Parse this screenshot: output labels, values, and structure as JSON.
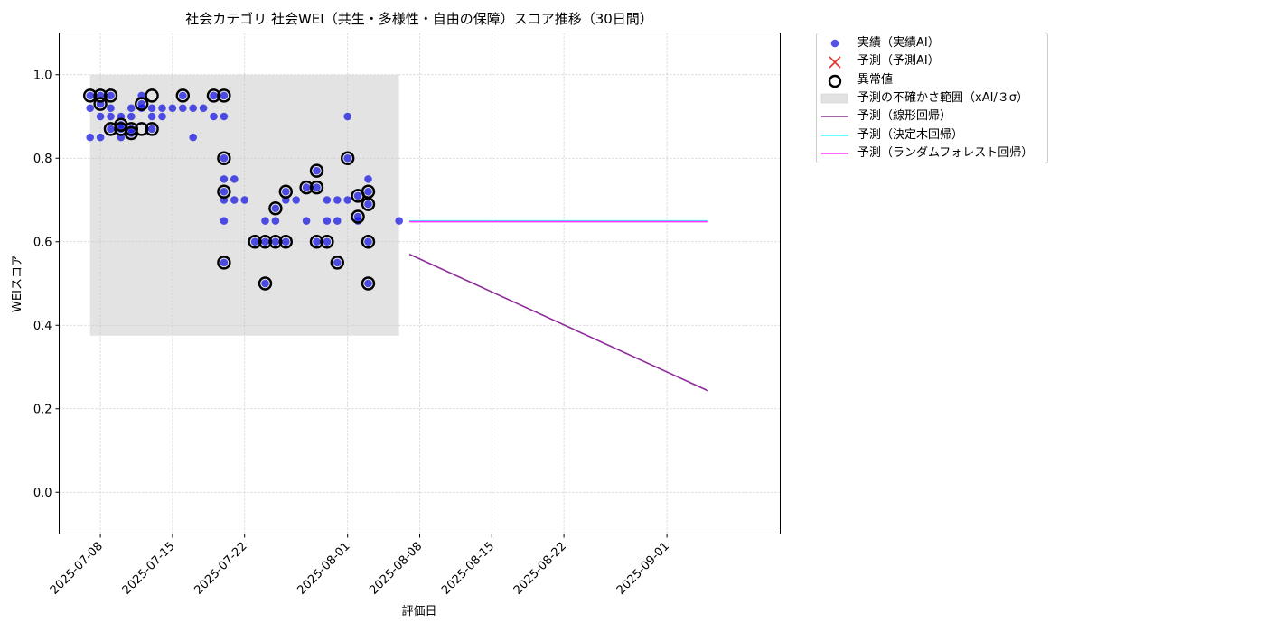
{
  "chart_data": {
    "type": "scatter",
    "title": "社会カテゴリ 社会WEI（共生・多様性・自由の保障）スコア推移（30日間）",
    "xlabel": "評価日",
    "ylabel": "WEIスコア",
    "xlim": [
      "2025-07-04",
      "2025-09-12"
    ],
    "ylim": [
      -0.1,
      1.1
    ],
    "x_tick_labels": [
      "2025-07-08",
      "2025-07-15",
      "2025-07-22",
      "2025-08-01",
      "2025-08-08",
      "2025-08-15",
      "2025-08-22",
      "2025-09-01"
    ],
    "y_tick_labels": [
      "0.0",
      "0.2",
      "0.4",
      "0.6",
      "0.8",
      "1.0"
    ],
    "grid": true,
    "legend_position": "outside-top-right",
    "colors": {
      "actual": "#1010e0",
      "forecast_x": "#e03030",
      "uncertainty": "#e2e2e2",
      "linear": "#8e2c9a",
      "tree": "#33ffff",
      "forest": "#ff33ff"
    },
    "uncertainty_band": {
      "x_start": "2025-07-07",
      "x_end": "2025-08-06",
      "y_low": 0.375,
      "y_high": 1.0
    },
    "series": [
      {
        "name": "実績（実績AI）",
        "kind": "points",
        "points": [
          [
            "2025-07-07",
            0.95
          ],
          [
            "2025-07-07",
            0.92
          ],
          [
            "2025-07-07",
            0.85
          ],
          [
            "2025-07-08",
            0.9
          ],
          [
            "2025-07-08",
            0.85
          ],
          [
            "2025-07-08",
            0.95
          ],
          [
            "2025-07-08",
            0.93
          ],
          [
            "2025-07-09",
            0.87
          ],
          [
            "2025-07-09",
            0.9
          ],
          [
            "2025-07-09",
            0.95
          ],
          [
            "2025-07-09",
            0.92
          ],
          [
            "2025-07-10",
            0.88
          ],
          [
            "2025-07-10",
            0.85
          ],
          [
            "2025-07-10",
            0.9
          ],
          [
            "2025-07-10",
            0.87
          ],
          [
            "2025-07-11",
            0.92
          ],
          [
            "2025-07-11",
            0.86
          ],
          [
            "2025-07-11",
            0.87
          ],
          [
            "2025-07-11",
            0.9
          ],
          [
            "2025-07-12",
            0.92
          ],
          [
            "2025-07-12",
            0.93
          ],
          [
            "2025-07-12",
            0.95
          ],
          [
            "2025-07-13",
            0.92
          ],
          [
            "2025-07-13",
            0.9
          ],
          [
            "2025-07-13",
            0.87
          ],
          [
            "2025-07-14",
            0.92
          ],
          [
            "2025-07-14",
            0.9
          ],
          [
            "2025-07-15",
            0.92
          ],
          [
            "2025-07-16",
            0.95
          ],
          [
            "2025-07-16",
            0.92
          ],
          [
            "2025-07-17",
            0.92
          ],
          [
            "2025-07-17",
            0.85
          ],
          [
            "2025-07-18",
            0.92
          ],
          [
            "2025-07-19",
            0.95
          ],
          [
            "2025-07-19",
            0.9
          ],
          [
            "2025-07-20",
            0.95
          ],
          [
            "2025-07-20",
            0.9
          ],
          [
            "2025-07-20",
            0.8
          ],
          [
            "2025-07-20",
            0.75
          ],
          [
            "2025-07-20",
            0.72
          ],
          [
            "2025-07-20",
            0.7
          ],
          [
            "2025-07-20",
            0.65
          ],
          [
            "2025-07-20",
            0.55
          ],
          [
            "2025-07-21",
            0.75
          ],
          [
            "2025-07-21",
            0.7
          ],
          [
            "2025-07-22",
            0.7
          ],
          [
            "2025-07-23",
            0.6
          ],
          [
            "2025-07-24",
            0.6
          ],
          [
            "2025-07-24",
            0.65
          ],
          [
            "2025-07-24",
            0.5
          ],
          [
            "2025-07-25",
            0.65
          ],
          [
            "2025-07-25",
            0.6
          ],
          [
            "2025-07-25",
            0.68
          ],
          [
            "2025-07-26",
            0.7
          ],
          [
            "2025-07-26",
            0.6
          ],
          [
            "2025-07-26",
            0.72
          ],
          [
            "2025-07-27",
            0.7
          ],
          [
            "2025-07-28",
            0.73
          ],
          [
            "2025-07-28",
            0.65
          ],
          [
            "2025-07-29",
            0.6
          ],
          [
            "2025-07-29",
            0.77
          ],
          [
            "2025-07-29",
            0.73
          ],
          [
            "2025-07-30",
            0.7
          ],
          [
            "2025-07-30",
            0.65
          ],
          [
            "2025-07-30",
            0.6
          ],
          [
            "2025-07-31",
            0.7
          ],
          [
            "2025-07-31",
            0.65
          ],
          [
            "2025-07-31",
            0.55
          ],
          [
            "2025-08-01",
            0.9
          ],
          [
            "2025-08-01",
            0.8
          ],
          [
            "2025-08-01",
            0.7
          ],
          [
            "2025-08-02",
            0.71
          ],
          [
            "2025-08-02",
            0.66
          ],
          [
            "2025-08-02",
            0.65
          ],
          [
            "2025-08-03",
            0.75
          ],
          [
            "2025-08-03",
            0.72
          ],
          [
            "2025-08-03",
            0.69
          ],
          [
            "2025-08-03",
            0.6
          ],
          [
            "2025-08-03",
            0.5
          ],
          [
            "2025-08-06",
            0.65
          ]
        ]
      },
      {
        "name": "異常値",
        "kind": "rings",
        "points": [
          [
            "2025-07-07",
            0.95
          ],
          [
            "2025-07-08",
            0.95
          ],
          [
            "2025-07-08",
            0.93
          ],
          [
            "2025-07-09",
            0.95
          ],
          [
            "2025-07-09",
            0.87
          ],
          [
            "2025-07-10",
            0.87
          ],
          [
            "2025-07-10",
            0.88
          ],
          [
            "2025-07-11",
            0.86
          ],
          [
            "2025-07-11",
            0.87
          ],
          [
            "2025-07-12",
            0.87
          ],
          [
            "2025-07-12",
            0.93
          ],
          [
            "2025-07-13",
            0.95
          ],
          [
            "2025-07-13",
            0.87
          ],
          [
            "2025-07-16",
            0.95
          ],
          [
            "2025-07-19",
            0.95
          ],
          [
            "2025-07-20",
            0.95
          ],
          [
            "2025-07-20",
            0.8
          ],
          [
            "2025-07-20",
            0.72
          ],
          [
            "2025-07-20",
            0.55
          ],
          [
            "2025-07-23",
            0.6
          ],
          [
            "2025-07-24",
            0.6
          ],
          [
            "2025-07-24",
            0.5
          ],
          [
            "2025-07-25",
            0.6
          ],
          [
            "2025-07-25",
            0.68
          ],
          [
            "2025-07-26",
            0.6
          ],
          [
            "2025-07-26",
            0.72
          ],
          [
            "2025-07-28",
            0.73
          ],
          [
            "2025-07-29",
            0.6
          ],
          [
            "2025-07-29",
            0.77
          ],
          [
            "2025-07-29",
            0.73
          ],
          [
            "2025-07-30",
            0.6
          ],
          [
            "2025-07-31",
            0.55
          ],
          [
            "2025-08-01",
            0.8
          ],
          [
            "2025-08-02",
            0.71
          ],
          [
            "2025-08-02",
            0.66
          ],
          [
            "2025-08-03",
            0.72
          ],
          [
            "2025-08-03",
            0.69
          ],
          [
            "2025-08-03",
            0.6
          ],
          [
            "2025-08-03",
            0.5
          ]
        ]
      },
      {
        "name": "予測（線形回帰）",
        "kind": "line",
        "points": [
          [
            "2025-08-07",
            0.57
          ],
          [
            "2025-09-05",
            0.243
          ]
        ]
      },
      {
        "name": "予測（決定木回帰）",
        "kind": "line",
        "points": [
          [
            "2025-08-07",
            0.65
          ],
          [
            "2025-09-05",
            0.65
          ]
        ]
      },
      {
        "name": "予測（ランダムフォレスト回帰）",
        "kind": "line",
        "points": [
          [
            "2025-08-07",
            0.648
          ],
          [
            "2025-09-05",
            0.648
          ]
        ]
      }
    ],
    "legend": [
      {
        "label": "実績（実績AI）",
        "marker": "dot"
      },
      {
        "label": "予測（予測AI）",
        "marker": "x"
      },
      {
        "label": "異常値",
        "marker": "ring"
      },
      {
        "label": "予測の不確かさ範囲（xAI/３σ）",
        "marker": "band"
      },
      {
        "label": "予測（線形回帰）",
        "marker": "line-linear"
      },
      {
        "label": "予測（決定木回帰）",
        "marker": "line-tree"
      },
      {
        "label": "予測（ランダムフォレスト回帰）",
        "marker": "line-forest"
      }
    ]
  }
}
